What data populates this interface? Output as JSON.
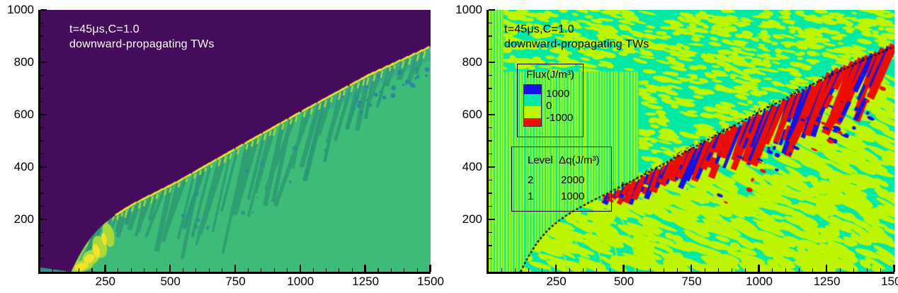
{
  "page": {
    "background": "#ffffff"
  },
  "left_plot": {
    "annotation": {
      "line1": "t=45μs,C=1.0",
      "line2": "downward-propagating TWs"
    },
    "annotation_color": "#ffffff"
  },
  "right_plot": {
    "annotation": {
      "line1": "t=45μs,C=1.0",
      "line2": "downward-propagating TWs"
    },
    "annotation_color": "#000000",
    "flux_legend": {
      "title": "Flux(J/m³)",
      "segment_colors": [
        "#1612E6",
        "#00E9A5",
        "#BEF500",
        "#EE0E00"
      ],
      "segment_heights": [
        13,
        17,
        17,
        11
      ],
      "boundary_labels": [
        "1000",
        "0",
        "-1000"
      ]
    },
    "level_legend": {
      "col1": "Level",
      "col2": "Δq(J/m³)",
      "rows": [
        {
          "level": "2",
          "dq": "2000"
        },
        {
          "level": "1",
          "dq": "1000"
        }
      ]
    }
  },
  "chart_data": [
    {
      "type": "heatmap",
      "panel": "left",
      "annotation": [
        "t=45μs,C=1.0",
        "downward-propagating TWs"
      ],
      "x_range": [
        0,
        1500
      ],
      "y_range": [
        0,
        1000
      ],
      "x_ticks": [
        250,
        500,
        750,
        1000,
        1250,
        1500
      ],
      "y_ticks": [
        200,
        400,
        600,
        800,
        1000
      ],
      "x_minor_step": 50,
      "y_minor_step": 50,
      "grid": false,
      "colormap": "viridis",
      "shock_front": [
        [
          118,
          0
        ],
        [
          160,
          90
        ],
        [
          240,
          185
        ],
        [
          350,
          255
        ],
        [
          520,
          340
        ],
        [
          750,
          470
        ],
        [
          1000,
          610
        ],
        [
          1250,
          745
        ],
        [
          1500,
          860
        ]
      ],
      "regions": [
        {
          "name": "unshocked-gas",
          "color": "#450C5C"
        },
        {
          "name": "shocked-gas",
          "color": "#3CBC78"
        },
        {
          "name": "transverse-wave-fingers",
          "color": "#2F9E73"
        },
        {
          "name": "hot-spot",
          "color": "#F3E32A"
        },
        {
          "name": "reaction-zone",
          "color": "#A9DA3A"
        },
        {
          "name": "bottom-layer",
          "color": "#2C9890"
        },
        {
          "name": "teal-spots",
          "color": "#2E86A0"
        }
      ]
    },
    {
      "type": "heatmap",
      "panel": "right",
      "annotation": [
        "t=45μs,C=1.0",
        "downward-propagating TWs"
      ],
      "x_range": [
        0,
        1500
      ],
      "y_range": [
        0,
        1000
      ],
      "x_ticks": [
        250,
        500,
        750,
        1000,
        1250,
        1500
      ],
      "y_ticks": [
        200,
        400,
        600,
        800,
        1000
      ],
      "x_minor_step": 50,
      "y_minor_step": 50,
      "grid": false,
      "colorbar": {
        "title": "Flux(J/m³)",
        "colors": [
          "#1612E6",
          "#00E9A5",
          "#BEF500",
          "#EE0E00"
        ],
        "boundaries": [
          1000,
          0,
          -1000
        ]
      },
      "heat_release_levels": [
        {
          "level": 2,
          "dq": 2000
        },
        {
          "level": 1,
          "dq": 1000
        }
      ],
      "shock_front": [
        [
          118,
          0
        ],
        [
          160,
          90
        ],
        [
          240,
          185
        ],
        [
          350,
          255
        ],
        [
          520,
          340
        ],
        [
          750,
          470
        ],
        [
          1000,
          610
        ],
        [
          1250,
          745
        ],
        [
          1500,
          860
        ]
      ],
      "field_colors": {
        "strong_positive_flux": "#1612E6",
        "positive_flux": "#00E9A5",
        "negative_flux": "#BEF500",
        "strong_negative_flux": "#EE0E00",
        "shock_line": "#000000"
      }
    }
  ]
}
